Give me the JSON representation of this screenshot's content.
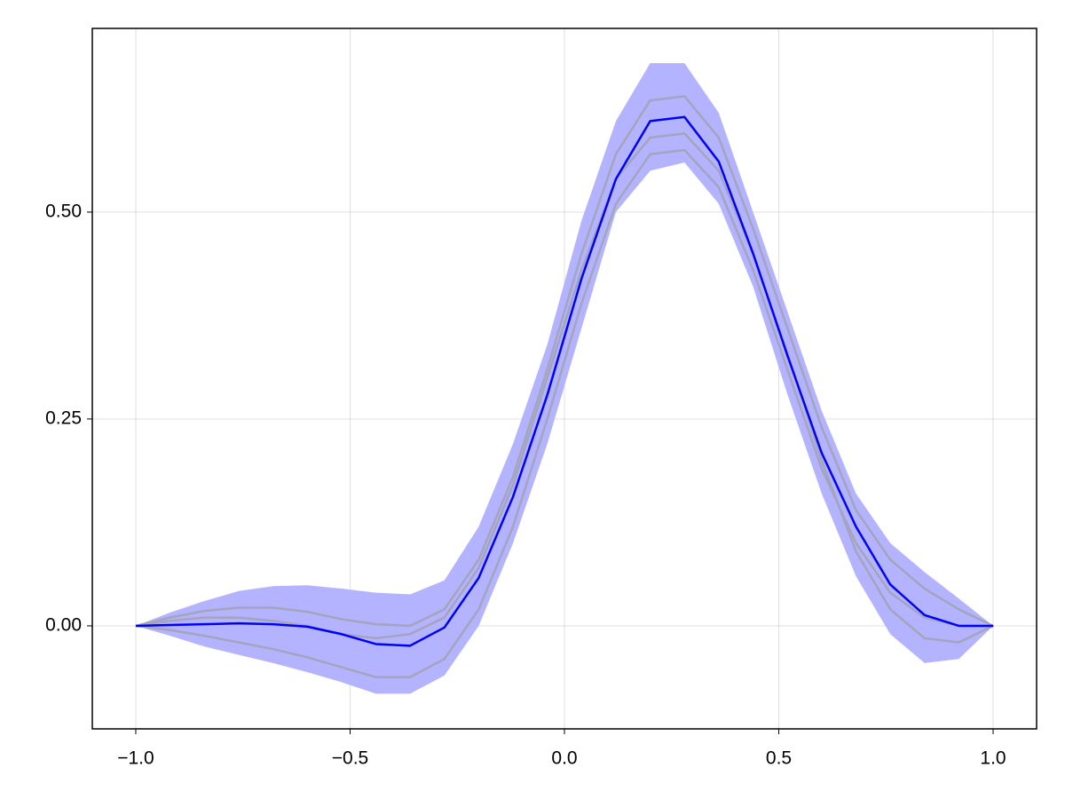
{
  "chart_data": {
    "type": "line",
    "x": [
      -1,
      -0.92,
      -0.84,
      -0.76,
      -0.68,
      -0.6,
      -0.52,
      -0.44,
      -0.36,
      -0.28,
      -0.2,
      -0.12,
      -0.04,
      0.04,
      0.12,
      0.2,
      0.28,
      0.36,
      0.44,
      0.52,
      0.6,
      0.68,
      0.76,
      0.84,
      0.92,
      1
    ],
    "band": {
      "color": "#b3b3ff",
      "upper": [
        0,
        0.016,
        0.03,
        0.042,
        0.048,
        0.049,
        0.045,
        0.04,
        0.038,
        0.055,
        0.12,
        0.22,
        0.34,
        0.49,
        0.61,
        0.68,
        0.68,
        0.62,
        0.5,
        0.38,
        0.26,
        0.16,
        0.1,
        0.065,
        0.033,
        0
      ],
      "lower": [
        0,
        -0.012,
        -0.025,
        -0.035,
        -0.045,
        -0.056,
        -0.068,
        -0.082,
        -0.082,
        -0.06,
        0,
        0.1,
        0.22,
        0.36,
        0.5,
        0.55,
        0.56,
        0.51,
        0.41,
        0.28,
        0.16,
        0.06,
        -0.01,
        -0.045,
        -0.04,
        0
      ]
    },
    "series": [
      {
        "color": "#a4a4bc",
        "values": [
          0,
          0.01,
          0.018,
          0.022,
          0.022,
          0.017,
          0.008,
          0.002,
          0,
          0.02,
          0.08,
          0.18,
          0.31,
          0.45,
          0.57,
          0.635,
          0.64,
          0.59,
          0.48,
          0.36,
          0.24,
          0.14,
          0.08,
          0.045,
          0.02,
          0
        ]
      },
      {
        "color": "#a4a4bc",
        "values": [
          0,
          0.006,
          0.01,
          0.01,
          0.006,
          0,
          -0.01,
          -0.015,
          -0.01,
          0.01,
          0.07,
          0.17,
          0.3,
          0.43,
          0.54,
          0.59,
          0.595,
          0.55,
          0.45,
          0.33,
          0.2,
          0.09,
          0.02,
          -0.015,
          -0.02,
          0
        ]
      },
      {
        "color": "#a4a4bc",
        "values": [
          0,
          -0.005,
          -0.012,
          -0.02,
          -0.028,
          -0.038,
          -0.05,
          -0.062,
          -0.062,
          -0.04,
          0.02,
          0.12,
          0.25,
          0.39,
          0.51,
          0.57,
          0.575,
          0.53,
          0.43,
          0.31,
          0.19,
          0.1,
          0.04,
          0.01,
          0,
          0
        ]
      },
      {
        "color": "#0000ff",
        "values": [
          0,
          0.001,
          0.002,
          0.003,
          0.002,
          -0.001,
          -0.01,
          -0.022,
          -0.024,
          -0.002,
          0.058,
          0.156,
          0.279,
          0.42,
          0.54,
          0.61,
          0.615,
          0.561,
          0.45,
          0.327,
          0.209,
          0.12,
          0.05,
          0.013,
          0,
          0
        ]
      }
    ],
    "xlim": [
      -1.1014,
      1.1014
    ],
    "ylim": [
      -0.1245,
      0.722
    ],
    "xticks": [
      {
        "value": -1,
        "label": "−1.0"
      },
      {
        "value": -0.5,
        "label": "−0.5"
      },
      {
        "value": 0,
        "label": "0.0"
      },
      0.5,
      {
        "value": 1,
        "label": "1.0"
      }
    ],
    "yticks": [
      {
        "value": 0,
        "label": "0.00"
      },
      0.25,
      {
        "value": 0.5,
        "label": "0.50"
      }
    ],
    "grid": true
  }
}
